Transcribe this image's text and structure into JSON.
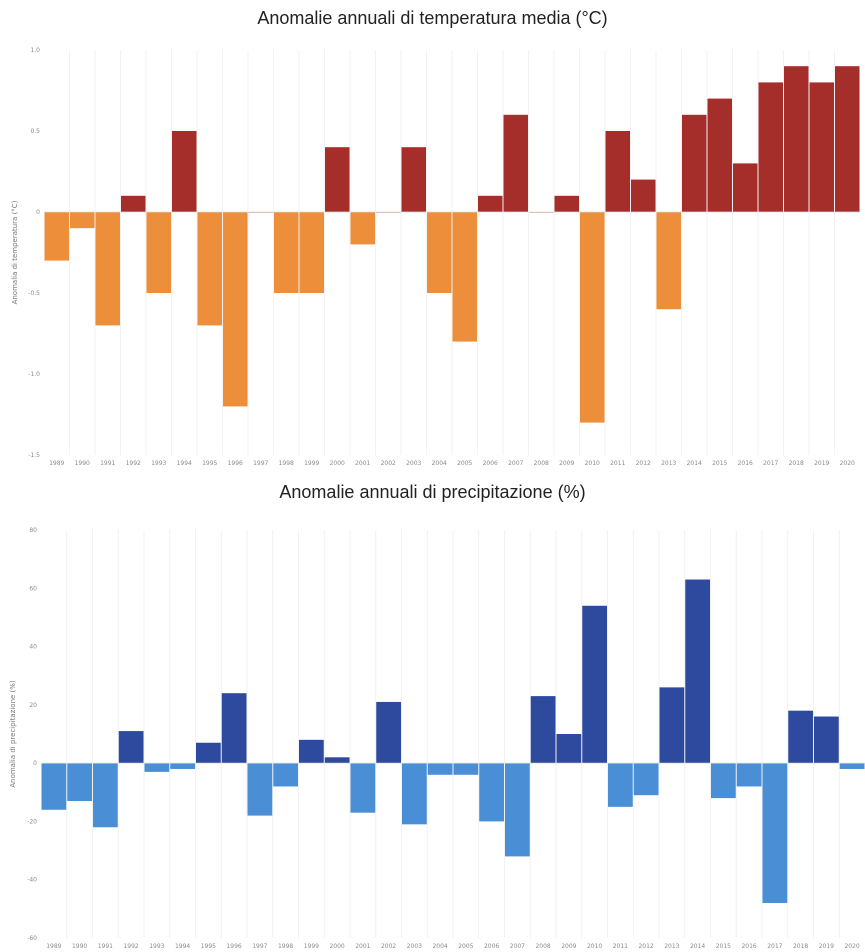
{
  "charts_meta": {
    "temperature_title": "Anomalie annuali di temperatura media (°C)",
    "precipitation_title": "Anomalie annuali di precipitazione (%)"
  },
  "chart_data": [
    {
      "type": "bar",
      "title": "Anomalie annuali di temperatura media (°C)",
      "xlabel": "",
      "ylabel": "Anomalia di temperatura (°C)",
      "ylim": [
        -1.5,
        1.0
      ],
      "yticks": [
        1.0,
        0.5,
        0,
        -0.5,
        -1.0,
        -1.5
      ],
      "ytick_labels": [
        "1.0",
        "0.5",
        "0",
        "-0.5",
        "-1.0",
        "-1.5"
      ],
      "grid": true,
      "positive_color": "#a52d2a",
      "negative_color": "#ec8e3a",
      "categories": [
        "1989",
        "1990",
        "1991",
        "1992",
        "1993",
        "1994",
        "1995",
        "1996",
        "1997",
        "1998",
        "1999",
        "2000",
        "2001",
        "2002",
        "2003",
        "2004",
        "2005",
        "2006",
        "2007",
        "2008",
        "2009",
        "2010",
        "2011",
        "2012",
        "2013",
        "2014",
        "2015",
        "2016",
        "2017",
        "2018",
        "2019",
        "2020"
      ],
      "values": [
        -0.3,
        -0.1,
        -0.7,
        0.1,
        -0.5,
        0.5,
        -0.7,
        -1.2,
        0.0,
        -0.5,
        -0.5,
        0.4,
        -0.2,
        0.0,
        0.4,
        -0.5,
        -0.8,
        0.1,
        0.6,
        0.0,
        0.1,
        -1.3,
        0.5,
        0.2,
        -0.6,
        0.6,
        0.7,
        0.3,
        0.8,
        0.9,
        0.8,
        0.9
      ]
    },
    {
      "type": "bar",
      "title": "Anomalie annuali di precipitazione (%)",
      "xlabel": "",
      "ylabel": "Anomalia di precipitazione (%)",
      "ylim": [
        -60,
        80
      ],
      "yticks": [
        80,
        60,
        40,
        20,
        0,
        -20,
        -40,
        -60
      ],
      "ytick_labels": [
        "80",
        "60",
        "40",
        "20",
        "0",
        "-20",
        "-40",
        "-60"
      ],
      "grid": true,
      "positive_color": "#2d4a9e",
      "negative_color": "#4a8fd6",
      "categories": [
        "1989",
        "1990",
        "1991",
        "1992",
        "1993",
        "1994",
        "1995",
        "1996",
        "1997",
        "1998",
        "1999",
        "2000",
        "2001",
        "2002",
        "2003",
        "2004",
        "2005",
        "2006",
        "2007",
        "2008",
        "2009",
        "2010",
        "2011",
        "2012",
        "2013",
        "2014",
        "2015",
        "2016",
        "2017",
        "2018",
        "2019",
        "2020"
      ],
      "values": [
        -16,
        -13,
        -22,
        11,
        -3,
        -2,
        7,
        24,
        -18,
        -8,
        8,
        2,
        -17,
        21,
        -21,
        -4,
        -4,
        -20,
        -32,
        23,
        10,
        54,
        -15,
        -11,
        26,
        63,
        -12,
        -8,
        -48,
        18,
        16,
        -2
      ]
    }
  ]
}
